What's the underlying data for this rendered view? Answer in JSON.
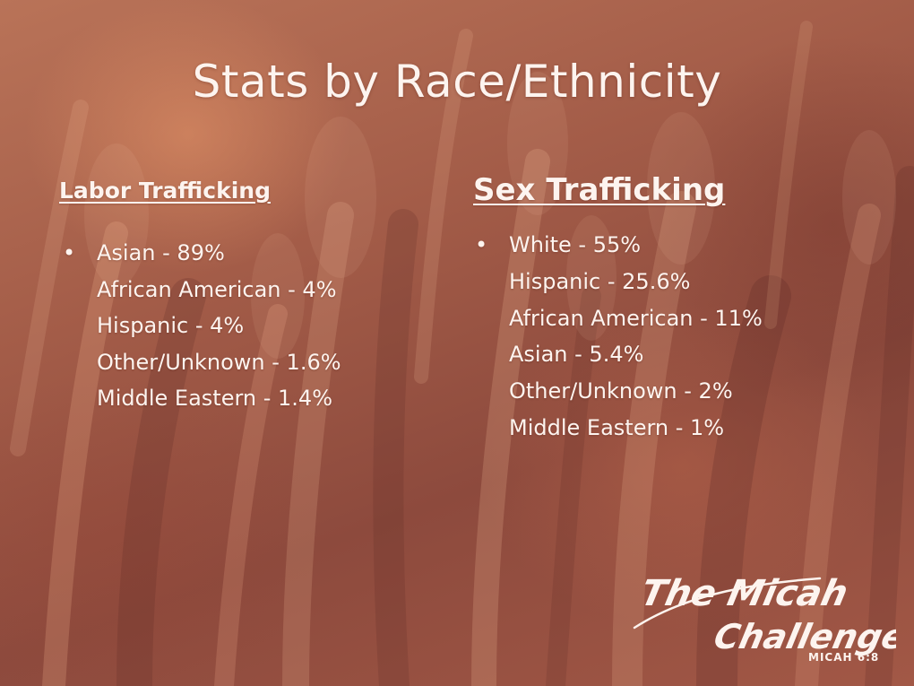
{
  "slide": {
    "title": "Stats by Race/Ethnicity",
    "columns": [
      {
        "heading": "Labor Trafficking",
        "items": [
          "Asian - 89%",
          "African American - 4%",
          "Hispanic - 4%",
          "Other/Unknown - 1.6%",
          "Middle Eastern - 1.4%"
        ]
      },
      {
        "heading": "Sex Trafficking",
        "items": [
          "White - 55%",
          "Hispanic - 25.6%",
          "African American - 11%",
          "Asian - 5.4%",
          "Other/Unknown - 2%",
          "Middle Eastern - 1%"
        ]
      }
    ],
    "bullet": "•"
  },
  "logo": {
    "line1": "The Micah",
    "line2": "Challenge",
    "reference": "MICAH 6:8"
  },
  "colors": {
    "text": "#fdf4ef",
    "background": "#a35c48"
  }
}
